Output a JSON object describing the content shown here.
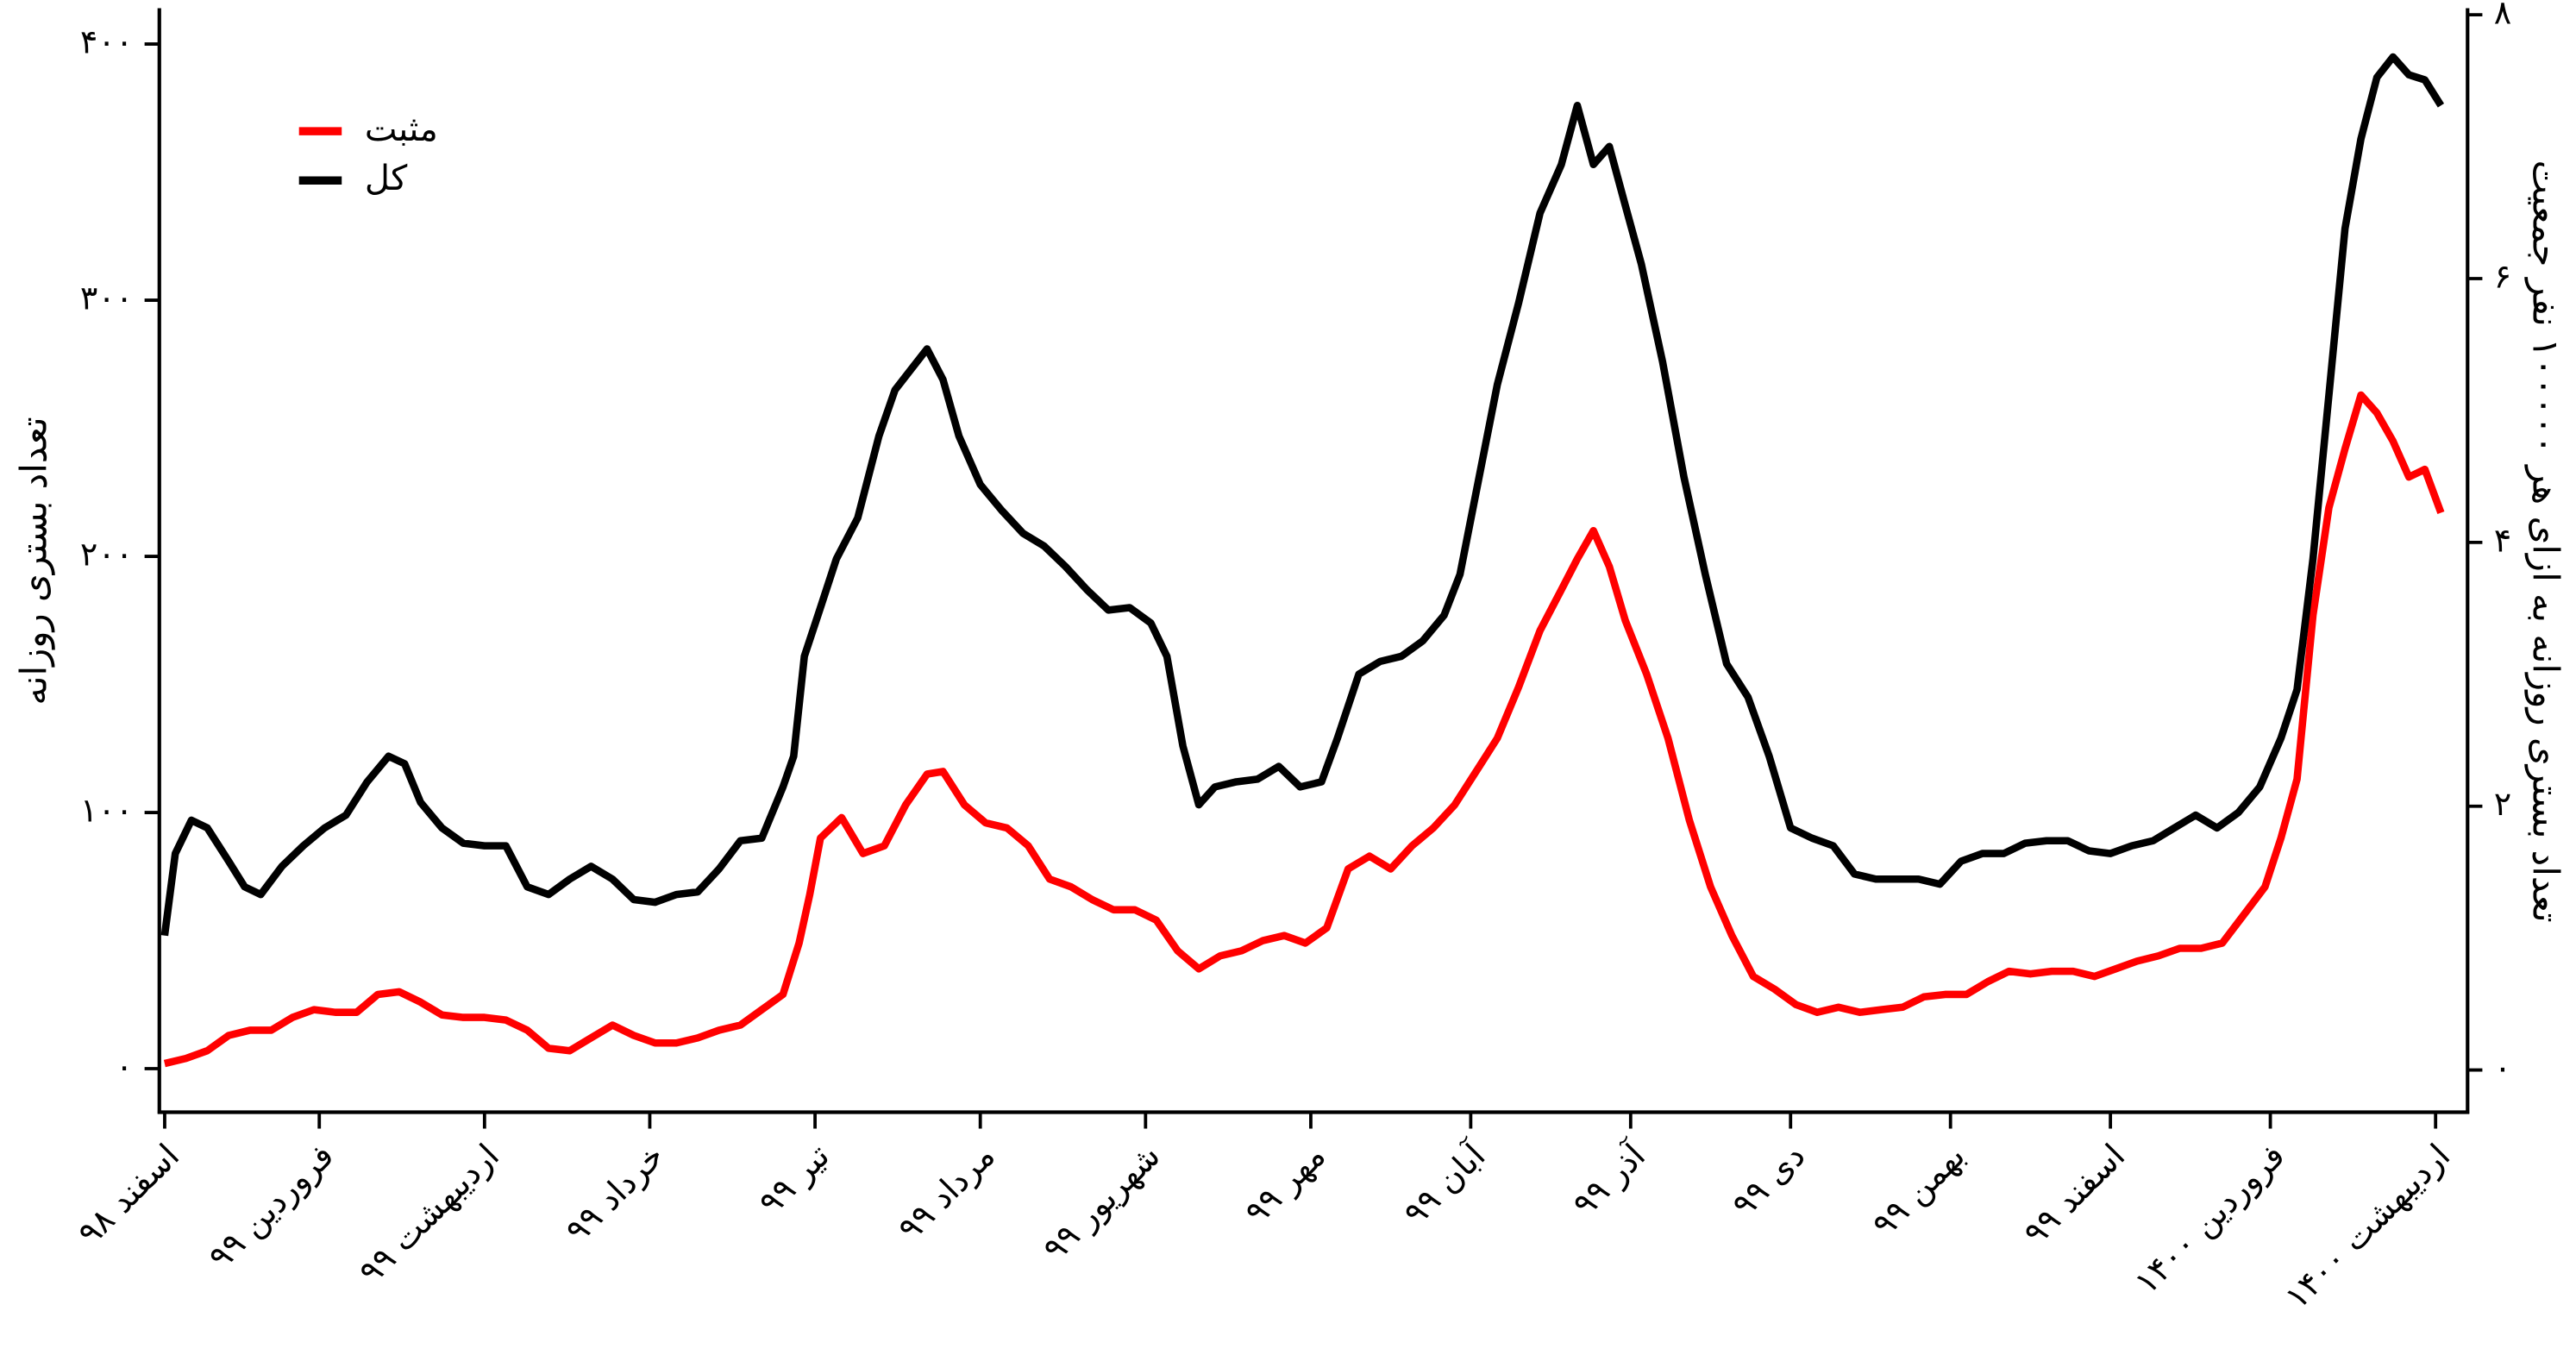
{
  "chart_data": {
    "type": "line",
    "y_label": "تعداد بستری روزانه",
    "y2_label": "تعداد بستری روزانه به ازای هر ۱۰۰۰۰۰ نفر جمعیت",
    "xlim": [
      -1,
      432
    ],
    "xticks": [
      {
        "value": 0,
        "label": "اسفند ۹۸"
      },
      {
        "value": 29,
        "label": "فروردین ۹۹"
      },
      {
        "value": 60,
        "label": "اردیبهشت ۹۹"
      },
      {
        "value": 91,
        "label": "خرداد ۹۹"
      },
      {
        "value": 122,
        "label": "تیر ۹۹"
      },
      {
        "value": 153,
        "label": "مرداد ۹۹"
      },
      {
        "value": 184,
        "label": "شهریور ۹۹"
      },
      {
        "value": 215,
        "label": "مهر ۹۹"
      },
      {
        "value": 245,
        "label": "آبان ۹۹"
      },
      {
        "value": 275,
        "label": "آذر ۹۹"
      },
      {
        "value": 305,
        "label": "دی ۹۹"
      },
      {
        "value": 335,
        "label": "بهمن ۹۹"
      },
      {
        "value": 365,
        "label": "اسفند ۹۹"
      },
      {
        "value": 395,
        "label": "فروردین ۱۴۰۰"
      },
      {
        "value": 426,
        "label": "اردیبهشت ۱۴۰۰"
      }
    ],
    "ylim": [
      -17,
      414
    ],
    "yticks": [
      {
        "value": 0,
        "label": "۰"
      },
      {
        "value": 100,
        "label": "۱۰۰"
      },
      {
        "value": 200,
        "label": "۲۰۰"
      },
      {
        "value": 300,
        "label": "۳۰۰"
      },
      {
        "value": 400,
        "label": "۴۰۰"
      }
    ],
    "y2lim": [
      -0.32,
      8.05
    ],
    "y2ticks": [
      {
        "value": 0,
        "label": "۰"
      },
      {
        "value": 2,
        "label": "۲"
      },
      {
        "value": 4,
        "label": "۴"
      },
      {
        "value": 6,
        "label": "۶"
      },
      {
        "value": 8,
        "label": "۸"
      }
    ],
    "legend": "upper left",
    "series": [
      {
        "name": "مثبت",
        "color": "#ff0000",
        "x": [
          0,
          4,
          8,
          12,
          16,
          20,
          24,
          28,
          32,
          36,
          40,
          44,
          48,
          52,
          56,
          60,
          64,
          68,
          72,
          76,
          80,
          84,
          88,
          92,
          96,
          100,
          104,
          108,
          112,
          116,
          119,
          121,
          123,
          127,
          131,
          135,
          139,
          143,
          146,
          150,
          154,
          158,
          162,
          166,
          170,
          174,
          178,
          182,
          186,
          190,
          194,
          198,
          202,
          206,
          210,
          214,
          218,
          222,
          226,
          230,
          234,
          238,
          242,
          246,
          250,
          254,
          258,
          262,
          265,
          268,
          271,
          274,
          278,
          282,
          286,
          290,
          294,
          298,
          302,
          306,
          310,
          314,
          318,
          322,
          326,
          330,
          334,
          338,
          342,
          346,
          350,
          354,
          358,
          362,
          366,
          370,
          374,
          378,
          382,
          386,
          390,
          394,
          397,
          400,
          403,
          406,
          409,
          412,
          415,
          418,
          421,
          424,
          427
        ],
        "values": [
          2,
          4,
          7,
          13,
          15,
          15,
          20,
          23,
          22,
          22,
          29,
          30,
          26,
          21,
          20,
          20,
          19,
          15,
          8,
          7,
          12,
          17,
          13,
          10,
          10,
          12,
          15,
          17,
          23,
          29,
          49,
          68,
          90,
          98,
          84,
          87,
          103,
          115,
          116,
          103,
          96,
          94,
          87,
          74,
          71,
          66,
          62,
          62,
          58,
          46,
          39,
          44,
          46,
          50,
          52,
          49,
          55,
          78,
          83,
          78,
          87,
          94,
          103,
          116,
          129,
          149,
          171,
          187,
          199,
          210,
          196,
          175,
          154,
          129,
          97,
          71,
          52,
          36,
          31,
          25,
          22,
          24,
          22,
          23,
          24,
          28,
          29,
          29,
          34,
          38,
          37,
          38,
          38,
          36,
          39,
          42,
          44,
          47,
          47,
          49,
          60,
          71,
          90,
          113,
          177,
          219,
          242,
          263,
          256,
          245,
          231,
          234,
          217
        ]
      },
      {
        "name": "کل",
        "color": "#000000",
        "x": [
          0,
          2,
          5,
          8,
          12,
          15,
          18,
          22,
          26,
          30,
          34,
          38,
          42,
          45,
          48,
          52,
          56,
          60,
          64,
          68,
          72,
          76,
          80,
          84,
          88,
          92,
          96,
          100,
          104,
          108,
          112,
          116,
          118,
          120,
          123,
          126,
          130,
          134,
          137,
          140,
          143,
          146,
          149,
          153,
          157,
          161,
          165,
          169,
          173,
          177,
          181,
          185,
          188,
          191,
          194,
          197,
          201,
          205,
          209,
          213,
          217,
          220,
          224,
          228,
          232,
          236,
          240,
          243,
          246,
          250,
          254,
          258,
          262,
          265,
          268,
          271,
          274,
          277,
          281,
          285,
          289,
          293,
          297,
          301,
          305,
          309,
          313,
          317,
          321,
          325,
          329,
          333,
          337,
          341,
          345,
          349,
          353,
          357,
          361,
          365,
          369,
          373,
          377,
          381,
          385,
          389,
          393,
          397,
          400,
          403,
          406,
          409,
          412,
          415,
          418,
          421,
          424,
          427
        ],
        "values": [
          52,
          84,
          97,
          94,
          81,
          71,
          68,
          79,
          87,
          94,
          99,
          112,
          122,
          119,
          104,
          94,
          88,
          87,
          87,
          71,
          68,
          74,
          79,
          74,
          66,
          65,
          68,
          69,
          78,
          89,
          90,
          110,
          122,
          161,
          180,
          199,
          215,
          247,
          265,
          273,
          281,
          269,
          247,
          228,
          218,
          209,
          204,
          196,
          187,
          179,
          180,
          174,
          161,
          126,
          103,
          110,
          112,
          113,
          118,
          110,
          112,
          129,
          154,
          159,
          161,
          167,
          177,
          193,
          225,
          267,
          299,
          334,
          353,
          376,
          353,
          360,
          337,
          314,
          276,
          231,
          193,
          158,
          145,
          122,
          94,
          90,
          87,
          76,
          74,
          74,
          74,
          72,
          81,
          84,
          84,
          88,
          89,
          89,
          85,
          84,
          87,
          89,
          94,
          99,
          94,
          100,
          110,
          129,
          148,
          199,
          263,
          328,
          363,
          387,
          395,
          388,
          386,
          376
        ]
      }
    ]
  }
}
